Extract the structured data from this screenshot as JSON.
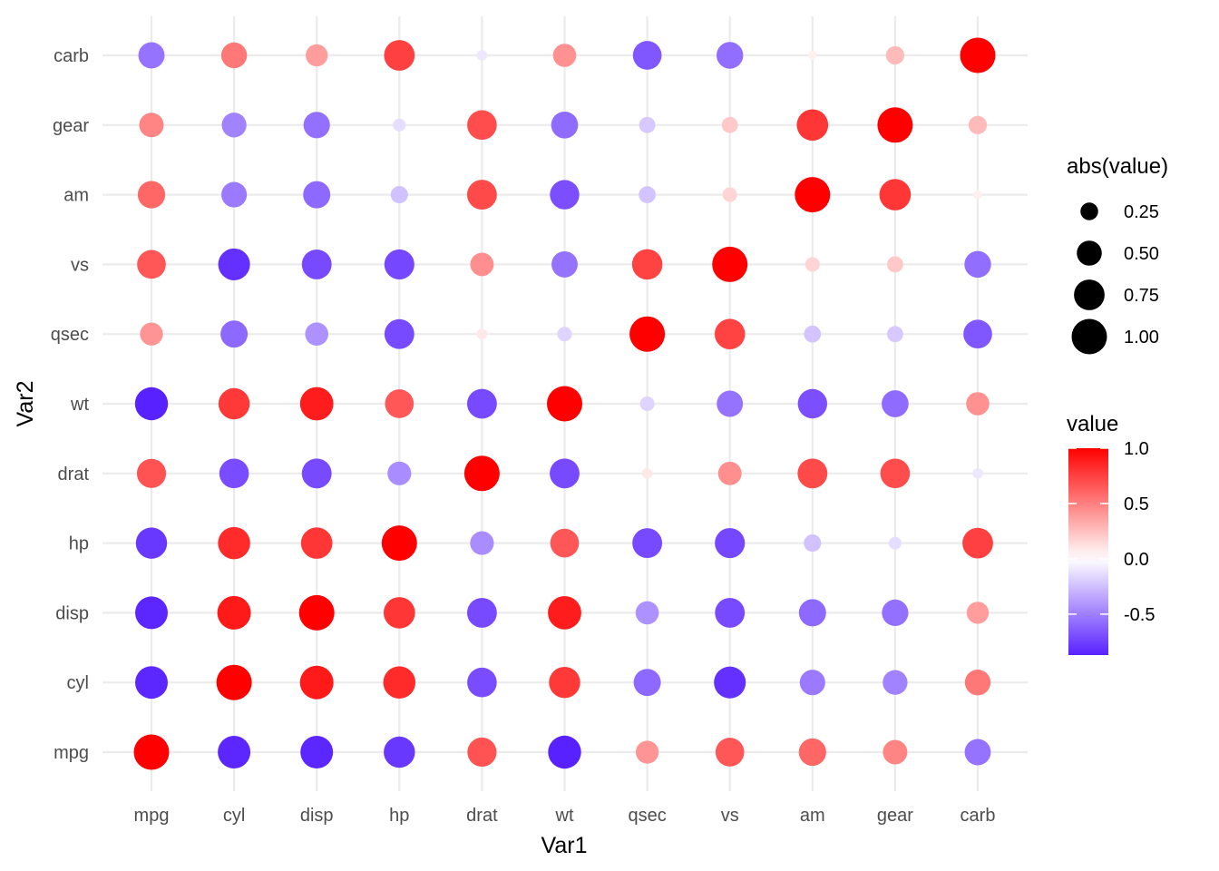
{
  "chart_data": {
    "type": "scatter",
    "subtype": "correlation-bubble-matrix",
    "title": "",
    "xlabel": "Var1",
    "ylabel": "Var2",
    "variables": [
      "mpg",
      "cyl",
      "disp",
      "hp",
      "drat",
      "wt",
      "qsec",
      "vs",
      "am",
      "gear",
      "carb"
    ],
    "matrix": [
      [
        1.0,
        -0.85,
        -0.85,
        -0.78,
        0.68,
        -0.87,
        0.42,
        0.66,
        0.6,
        0.48,
        -0.55
      ],
      [
        -0.85,
        1.0,
        0.9,
        0.83,
        -0.7,
        0.78,
        -0.59,
        -0.81,
        -0.52,
        -0.49,
        0.53
      ],
      [
        -0.85,
        0.9,
        1.0,
        0.79,
        -0.71,
        0.89,
        -0.43,
        -0.71,
        -0.59,
        -0.56,
        0.39
      ],
      [
        -0.78,
        0.83,
        0.79,
        1.0,
        -0.45,
        0.66,
        -0.71,
        -0.72,
        -0.24,
        -0.13,
        0.75
      ],
      [
        0.68,
        -0.7,
        -0.71,
        -0.45,
        1.0,
        -0.71,
        0.09,
        0.44,
        0.71,
        0.7,
        -0.09
      ],
      [
        -0.87,
        0.78,
        0.89,
        0.66,
        -0.71,
        1.0,
        -0.17,
        -0.55,
        -0.69,
        -0.58,
        0.43
      ],
      [
        0.42,
        -0.59,
        -0.43,
        -0.71,
        0.09,
        -0.17,
        1.0,
        0.74,
        -0.23,
        -0.21,
        -0.66
      ],
      [
        0.66,
        -0.81,
        -0.71,
        -0.72,
        0.44,
        -0.55,
        0.74,
        1.0,
        0.17,
        0.21,
        -0.57
      ],
      [
        0.6,
        -0.52,
        -0.59,
        -0.24,
        0.71,
        -0.69,
        -0.23,
        0.17,
        1.0,
        0.79,
        0.06
      ],
      [
        0.48,
        -0.49,
        -0.56,
        -0.13,
        0.7,
        -0.58,
        -0.21,
        0.21,
        0.79,
        1.0,
        0.27
      ],
      [
        -0.55,
        0.53,
        0.39,
        0.75,
        -0.09,
        0.43,
        -0.66,
        -0.57,
        0.06,
        0.27,
        1.0
      ]
    ],
    "size_legend": {
      "title": "abs(value)",
      "breaks": [
        0.25,
        0.5,
        0.75,
        1.0
      ],
      "labels": [
        "0.25",
        "0.50",
        "0.75",
        "1.00"
      ]
    },
    "color_legend": {
      "title": "value",
      "breaks": [
        1.0,
        0.5,
        0.0,
        -0.5
      ],
      "labels": [
        "1.0",
        "0.5",
        "0.0",
        "-0.5"
      ],
      "low_color": "#3f00ff",
      "mid_color": "#ffffff",
      "high_color": "#ff0000",
      "range": [
        -0.87,
        1.0
      ]
    },
    "grid": true,
    "legend_position": "right"
  }
}
